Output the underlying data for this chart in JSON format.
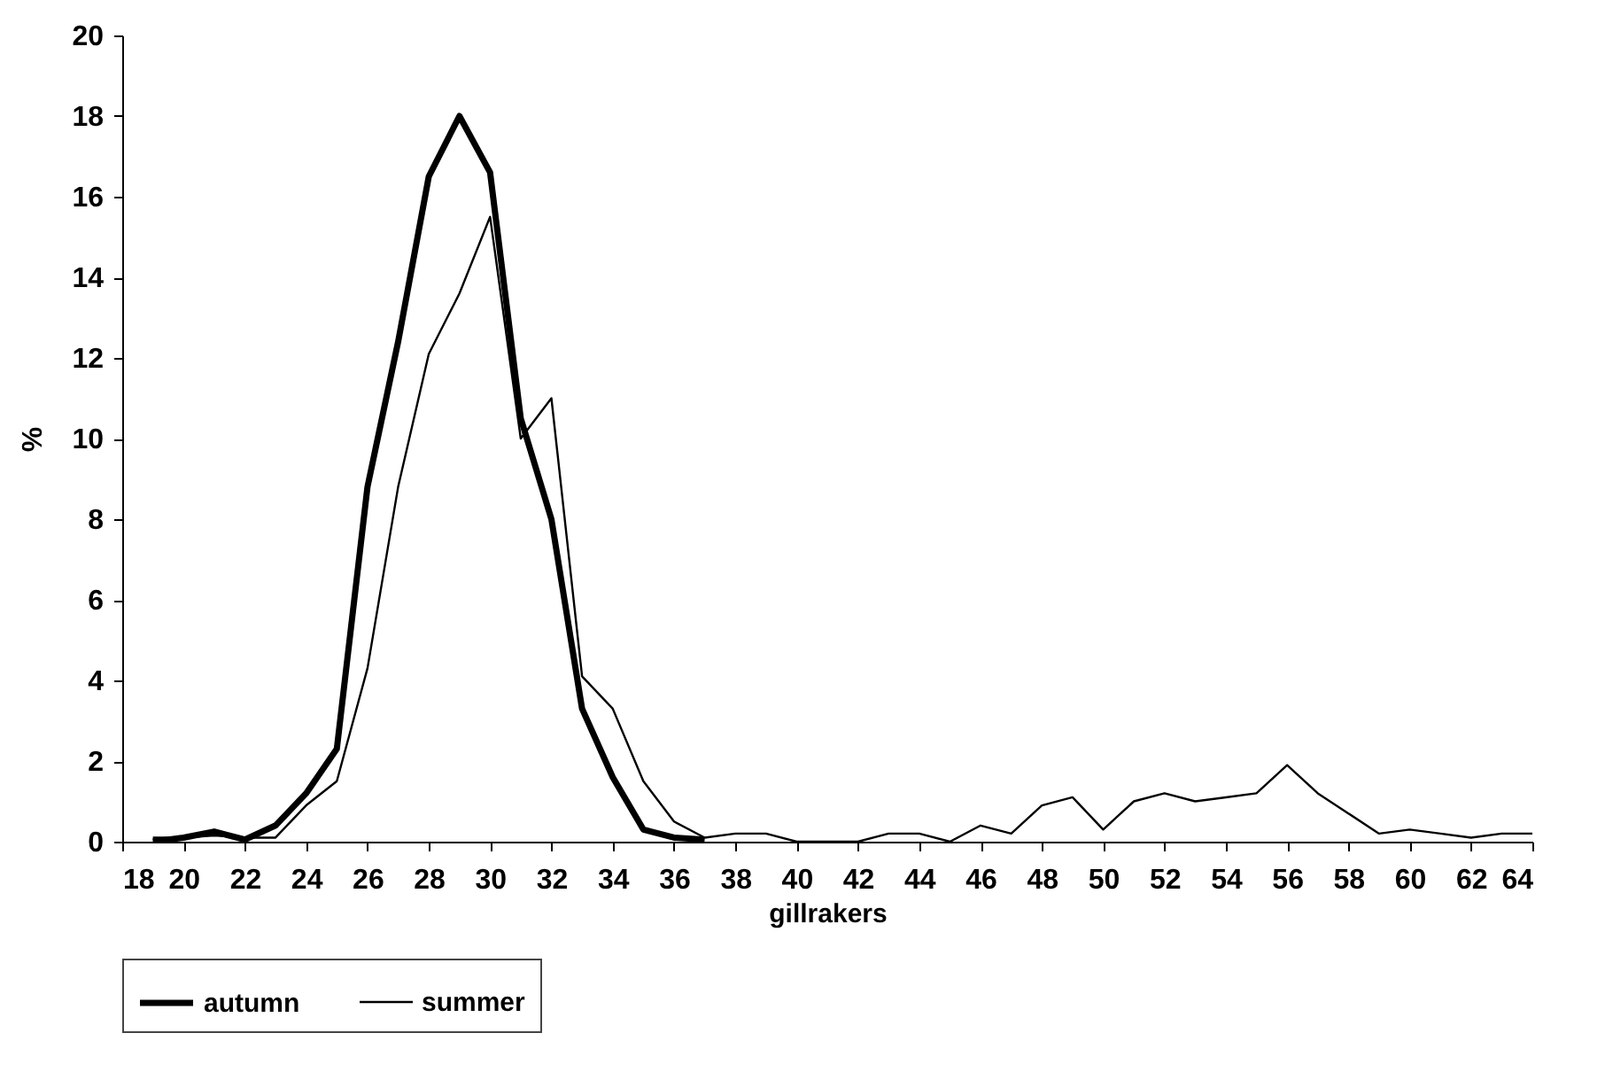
{
  "chart_data": {
    "type": "line",
    "xlabel": "gillrakers",
    "ylabel": "%",
    "xlim": [
      18,
      64
    ],
    "xticks": [
      18,
      20,
      22,
      24,
      26,
      28,
      30,
      32,
      34,
      36,
      38,
      40,
      42,
      44,
      46,
      48,
      50,
      52,
      54,
      56,
      58,
      60,
      62,
      64
    ],
    "ylim": [
      0,
      20
    ],
    "yticks": [
      0,
      2,
      4,
      6,
      8,
      10,
      12,
      14,
      16,
      18,
      20
    ],
    "grid": false,
    "legend": "bottom",
    "marker": "none",
    "line_style": "solid",
    "series": [
      {
        "name": "autumn",
        "color": "#000000",
        "x": [
          19,
          20,
          21,
          22,
          23,
          24,
          25,
          26,
          27,
          28,
          29,
          30,
          31,
          32,
          33,
          34,
          35,
          36,
          37
        ],
        "values": [
          0,
          0.1,
          0.25,
          0.05,
          0.4,
          1.2,
          2.3,
          8.8,
          12.4,
          16.5,
          18,
          16.6,
          10.5,
          8,
          3.3,
          1.6,
          0.3,
          0.1,
          0.05
        ]
      },
      {
        "name": "summer",
        "color": "#000000",
        "x": [
          19,
          20,
          21,
          22,
          23,
          24,
          25,
          26,
          27,
          28,
          29,
          30,
          31,
          32,
          33,
          34,
          35,
          36,
          37,
          38,
          39,
          40,
          41,
          42,
          43,
          44,
          45,
          46,
          47,
          48,
          49,
          50,
          51,
          52,
          53,
          54,
          55,
          56,
          57,
          58,
          59,
          60,
          61,
          62,
          63,
          64
        ],
        "values": [
          0.1,
          0.1,
          0.15,
          0.1,
          0.1,
          0.9,
          1.5,
          4.3,
          8.8,
          12.1,
          13.6,
          15.5,
          10,
          11,
          4.1,
          3.3,
          1.5,
          0.5,
          0.1,
          0.2,
          0.2,
          0,
          0,
          0,
          0.2,
          0.2,
          0,
          0.4,
          0.2,
          0.9,
          1.1,
          0.3,
          1,
          1.2,
          1,
          1.1,
          1.2,
          1.9,
          1.2,
          0.7,
          0.2,
          0.3,
          0.2,
          0.1,
          0.2,
          0.2
        ]
      }
    ]
  }
}
